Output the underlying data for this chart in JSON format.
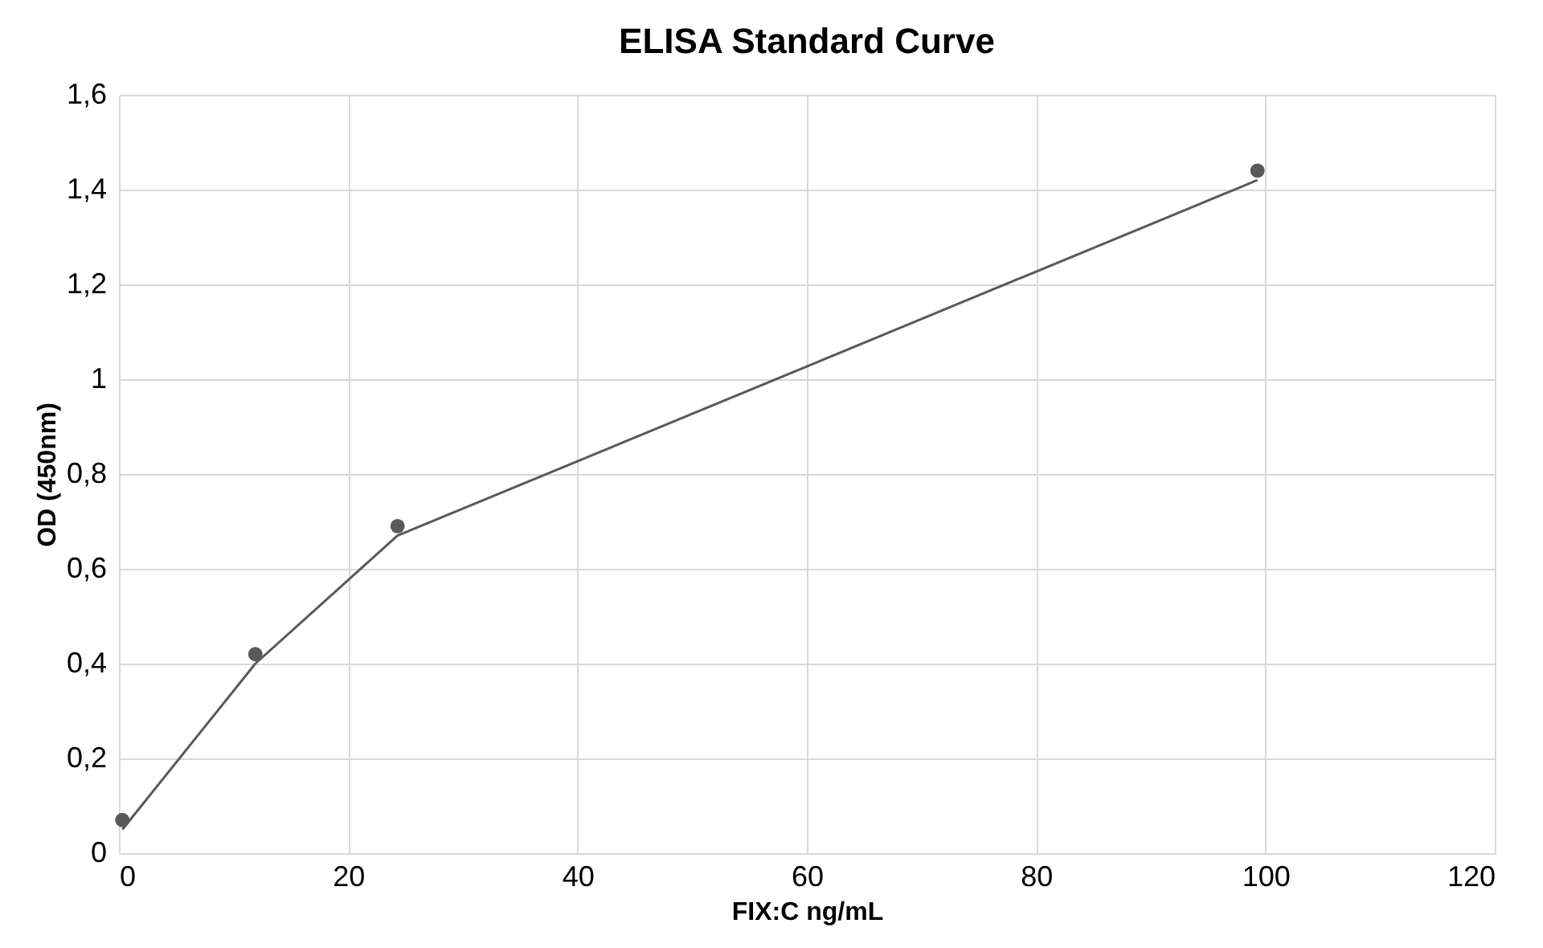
{
  "chart_data": {
    "type": "scatter",
    "title": "ELISA Standard Curve",
    "xlabel": "FIX:C ng/mL",
    "ylabel": "OD (450nm)",
    "series": [
      {
        "color": "#595959",
        "x": [
          0.3,
          11.9,
          24.3,
          99.3
        ],
        "values": [
          0.07,
          0.42,
          0.69,
          1.44
        ],
        "marker": "circle"
      },
      {
        "type": "line",
        "color": "#595959",
        "x": [
          0.3,
          11.9,
          24.3,
          99.3
        ],
        "values": [
          0.05,
          0.4,
          0.67,
          1.42
        ],
        "marker": "none",
        "line_style": "solid"
      }
    ],
    "xlim": [
      0,
      120
    ],
    "xticks": [
      0,
      20,
      40,
      60,
      80,
      100,
      120
    ],
    "ylim": [
      0,
      1.6
    ],
    "yticks": [
      0,
      {
        "value": 0.2,
        "label": "0,2"
      },
      {
        "value": 0.4,
        "label": "0,4"
      },
      {
        "value": 0.6,
        "label": "0,6"
      },
      {
        "value": 0.8,
        "label": "0,8"
      },
      1,
      {
        "value": 1.2,
        "label": "1,2"
      },
      {
        "value": 1.4,
        "label": "1,4"
      },
      {
        "value": 1.6,
        "label": "1,6"
      }
    ],
    "grid": true,
    "legend": false
  }
}
